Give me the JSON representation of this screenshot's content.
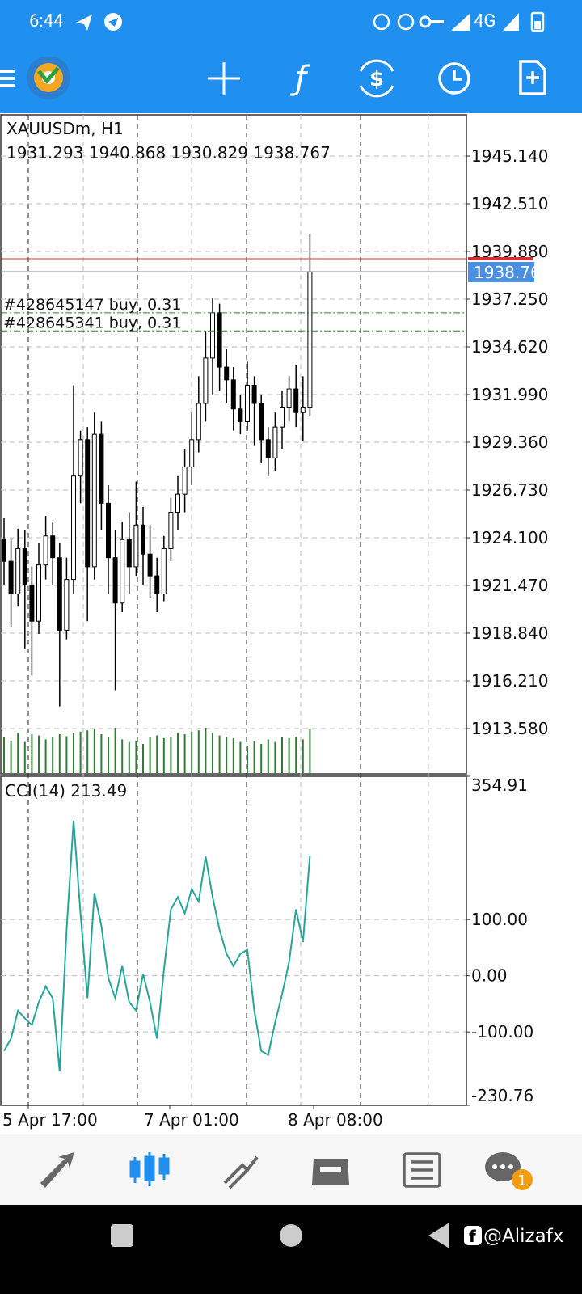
{
  "status_bar": {
    "time": "6:44",
    "network": "4G"
  },
  "chart_data": {
    "type": "candlestick",
    "symbol": "XAUUSDm, H1",
    "open": [
      1924.0,
      1922.8,
      1921.0,
      1923.5,
      1921.5,
      1919.5,
      1922.6,
      1924.2,
      1923.0,
      1919.0,
      1921.8,
      1927.5,
      1929.5,
      1922.5,
      1929.8,
      1926.0,
      1923.0,
      1920.5,
      1924.0,
      1922.5,
      1924.8,
      1923.2,
      1922.0,
      1921.0,
      1923.5,
      1925.5,
      1926.5,
      1928.0,
      1929.5,
      1931.5,
      1934.0,
      1936.5,
      1933.5,
      1932.8,
      1931.2,
      1930.5,
      1932.5,
      1931.5,
      1929.5,
      1928.5,
      1930.2,
      1931.3,
      1932.3,
      1931.0,
      1931.293
    ],
    "high": [
      1925.2,
      1924.0,
      1924.6,
      1924.5,
      1922.5,
      1923.8,
      1925.3,
      1925.0,
      1923.8,
      1923.0,
      1932.5,
      1930.0,
      1930.2,
      1931.0,
      1930.5,
      1927.0,
      1924.5,
      1925.0,
      1925.5,
      1927.2,
      1925.8,
      1924.8,
      1923.0,
      1924.2,
      1926.3,
      1927.5,
      1929.0,
      1931.0,
      1933.0,
      1935.5,
      1937.3,
      1937.0,
      1934.5,
      1933.5,
      1932.0,
      1933.8,
      1933.0,
      1932.0,
      1930.2,
      1931.0,
      1932.2,
      1933.0,
      1933.6,
      1933.0,
      1940.868
    ],
    "low": [
      1921.5,
      1919.2,
      1920.3,
      1918.0,
      1916.5,
      1918.8,
      1921.8,
      1921.5,
      1914.8,
      1918.5,
      1921.0,
      1926.0,
      1919.5,
      1921.8,
      1924.5,
      1921.0,
      1915.7,
      1920.0,
      1921.0,
      1922.0,
      1921.5,
      1920.8,
      1920.0,
      1920.6,
      1922.8,
      1924.5,
      1925.5,
      1927.0,
      1928.8,
      1930.5,
      1932.0,
      1932.2,
      1931.5,
      1930.0,
      1929.8,
      1930.0,
      1929.2,
      1928.2,
      1927.5,
      1927.8,
      1929.0,
      1930.5,
      1930.2,
      1929.4,
      1930.829
    ],
    "close": [
      1922.8,
      1921.0,
      1923.5,
      1921.5,
      1919.5,
      1922.6,
      1924.2,
      1923.0,
      1919.0,
      1921.8,
      1927.5,
      1929.5,
      1922.5,
      1929.8,
      1926.0,
      1923.0,
      1920.5,
      1924.0,
      1922.5,
      1924.8,
      1923.2,
      1922.0,
      1921.0,
      1923.5,
      1925.5,
      1926.5,
      1928.0,
      1929.5,
      1931.5,
      1934.0,
      1936.5,
      1933.5,
      1932.8,
      1931.2,
      1930.5,
      1932.5,
      1931.5,
      1929.5,
      1928.5,
      1930.2,
      1931.3,
      1932.3,
      1931.0,
      1931.3,
      1938.767
    ],
    "volumes": [
      55,
      50,
      62,
      48,
      60,
      58,
      52,
      55,
      60,
      57,
      62,
      64,
      66,
      68,
      60,
      55,
      70,
      52,
      48,
      50,
      45,
      55,
      58,
      54,
      56,
      62,
      60,
      64,
      66,
      70,
      62,
      58,
      56,
      54,
      48,
      42,
      50,
      45,
      52,
      48,
      55,
      54,
      56,
      52,
      68
    ],
    "vlim": [
      0,
      100
    ],
    "volume_color": "#2e7d32",
    "ylim": [
      1911.084,
      1947.413
    ],
    "yticks": [
      {
        "value": 1945.14,
        "label": "1945.140"
      },
      {
        "value": 1942.51,
        "label": "1942.510"
      },
      {
        "value": 1939.88,
        "label": "1939.880"
      },
      {
        "value": 1937.25,
        "label": "1937.250"
      },
      {
        "value": 1934.62,
        "label": "1934.620"
      },
      {
        "value": 1931.99,
        "label": "1931.990"
      },
      {
        "value": 1929.36,
        "label": "1929.360"
      },
      {
        "value": 1926.73,
        "label": "1926.730"
      },
      {
        "value": 1924.1,
        "label": "1924.100"
      },
      {
        "value": 1921.47,
        "label": "1921.470"
      },
      {
        "value": 1918.84,
        "label": "1918.840"
      },
      {
        "value": 1916.21,
        "label": "1916.210"
      },
      {
        "value": 1913.58,
        "label": "1913.580"
      }
    ],
    "grid": true,
    "bid": 1938.767,
    "ask": 1939.48,
    "bid_color": "#4a90e2",
    "ask_color": "#d32f2f",
    "orders": [
      {
        "label": "#428645147 buy, 0.31",
        "price": 1936.5
      },
      {
        "label": "#428645341 buy, 0.31",
        "price": 1935.5
      }
    ],
    "time_labels": [
      "5 Apr 17:00",
      "7 Apr 01:00",
      "8 Apr 08:00"
    ],
    "indicator": {
      "type": "line",
      "name": "CCI(14)",
      "color": "#26a69a",
      "values": [
        -134,
        -112,
        -62,
        -76,
        -88,
        -47,
        -19,
        -40,
        -170,
        82,
        276,
        111,
        -40,
        147,
        89,
        -4,
        -40,
        17,
        -47,
        -62,
        3,
        -47,
        -112,
        10,
        118,
        140,
        111,
        154,
        132,
        212,
        140,
        82,
        39,
        17,
        39,
        46,
        -62,
        -134,
        -141,
        -83,
        -33,
        24,
        118,
        60,
        213.49
      ],
      "ylim": [
        -230.76,
        354.91
      ],
      "yticks": [
        {
          "value": 354.91,
          "label": "354.91"
        },
        {
          "value": 100,
          "label": "100.00"
        },
        {
          "value": 0,
          "label": "0.00"
        },
        {
          "value": -100,
          "label": "-100.00"
        },
        {
          "value": -230.76,
          "label": "-230.76"
        }
      ]
    }
  },
  "watermark": "@Alizafx"
}
